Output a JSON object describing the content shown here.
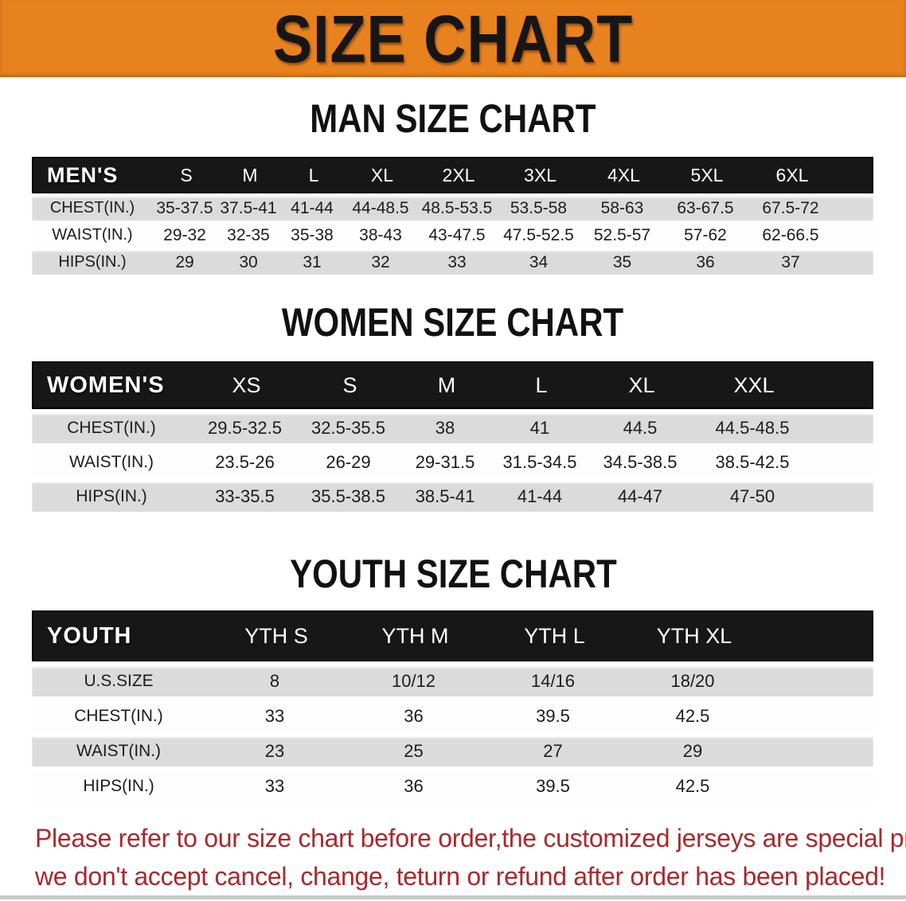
{
  "colors": {
    "banner_bg": "#E8821E",
    "header_band": "#171717",
    "row_gray": "#DBDBDB",
    "footer_red": "#A8292B"
  },
  "banner": {
    "title": "SIZE CHART"
  },
  "sections": [
    {
      "heading": "MAN SIZE CHART",
      "table": {
        "header_label": "MEN'S",
        "columns": [
          "S",
          "M",
          "L",
          "XL",
          "2XL",
          "3XL",
          "4XL",
          "5XL",
          "6XL"
        ],
        "rows": [
          {
            "label": "CHEST(IN.)",
            "values": [
              "35-37.5",
              "37.5-41",
              "41-44",
              "44-48.5",
              "48.5-53.5",
              "53.5-58",
              "58-63",
              "63-67.5",
              "67.5-72"
            ]
          },
          {
            "label": "WAIST(IN.)",
            "values": [
              "29-32",
              "32-35",
              "35-38",
              "38-43",
              "43-47.5",
              "47.5-52.5",
              "52.5-57",
              "57-62",
              "62-66.5"
            ]
          },
          {
            "label": "HIPS(IN.)",
            "values": [
              "29",
              "30",
              "31",
              "32",
              "33",
              "34",
              "35",
              "36",
              "37"
            ]
          }
        ]
      }
    },
    {
      "heading": "WOMEN SIZE CHART",
      "table": {
        "header_label": "WOMEN'S",
        "columns": [
          "XS",
          "S",
          "M",
          "L",
          "XL",
          "XXL"
        ],
        "rows": [
          {
            "label": "CHEST(IN.)",
            "values": [
              "29.5-32.5",
              "32.5-35.5",
              "38",
              "41",
              "44.5",
              "44.5-48.5"
            ]
          },
          {
            "label": "WAIST(IN.)",
            "values": [
              "23.5-26",
              "26-29",
              "29-31.5",
              "31.5-34.5",
              "34.5-38.5",
              "38.5-42.5"
            ]
          },
          {
            "label": "HIPS(IN.)",
            "values": [
              "33-35.5",
              "35.5-38.5",
              "38.5-41",
              "41-44",
              "44-47",
              "47-50"
            ]
          }
        ]
      }
    },
    {
      "heading": "YOUTH SIZE CHART",
      "table": {
        "header_label": "YOUTH",
        "columns": [
          "YTH S",
          "YTH M",
          "YTH L",
          "YTH XL"
        ],
        "rows": [
          {
            "label": "U.S.SIZE",
            "values": [
              "8",
              "10/12",
              "14/16",
              "18/20"
            ]
          },
          {
            "label": "CHEST(IN.)",
            "values": [
              "33",
              "36",
              "39.5",
              "42.5"
            ]
          },
          {
            "label": "WAIST(IN.)",
            "values": [
              "23",
              "25",
              "27",
              "29"
            ]
          },
          {
            "label": "HIPS(IN.)",
            "values": [
              "33",
              "36",
              "39.5",
              "42.5"
            ]
          }
        ]
      }
    }
  ],
  "footer": {
    "line1": "Please refer to our size chart before order,the customized jerseys are special products,",
    "line2": "we don't accept cancel, change, teturn or refund after order has been placed!"
  }
}
